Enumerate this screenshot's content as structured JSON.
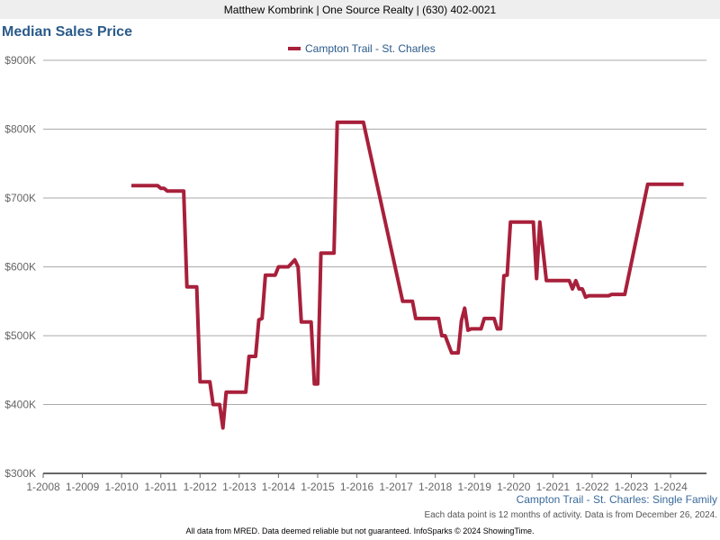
{
  "header": "Matthew Kombrink | One Source Realty | (630) 402-0021",
  "chart_data": {
    "type": "line",
    "title": "Median Sales Price",
    "x_label": "Campton Trail - St. Charles: Single Family",
    "note": "Each data point is 12 months of activity. Data is from December 26, 2024.",
    "footer": "All data from MRED. Data deemed reliable but not guaranteed. InfoSparks © 2024 ShowingTime.",
    "x": [
      "4-2010",
      "12-2010",
      "1-2011",
      "2-2011",
      "3-2011",
      "8-2011",
      "9-2011",
      "12-2011",
      "1-2012",
      "4-2012",
      "5-2012",
      "7-2012",
      "8-2012",
      "9-2012",
      "3-2013",
      "4-2013",
      "6-2013",
      "7-2013",
      "8-2013",
      "9-2013",
      "12-2013",
      "1-2014",
      "4-2014",
      "6-2014",
      "7-2014",
      "8-2014",
      "11-2014",
      "12-2014",
      "1-2015",
      "2-2015",
      "6-2015",
      "7-2015",
      "3-2016",
      "3-2017",
      "6-2017",
      "7-2017",
      "2-2018",
      "3-2018",
      "4-2018",
      "6-2018",
      "8-2018",
      "9-2018",
      "10-2018",
      "11-2018",
      "12-2018",
      "3-2019",
      "4-2019",
      "7-2019",
      "8-2019",
      "9-2019",
      "10-2019",
      "11-2019",
      "12-2019",
      "7-2020",
      "8-2020",
      "9-2020",
      "11-2020",
      "6-2021",
      "7-2021",
      "8-2021",
      "9-2021",
      "10-2021",
      "11-2021",
      "12-2021",
      "6-2022",
      "7-2022",
      "11-2022",
      "6-2023",
      "5-2024"
    ],
    "series": [
      {
        "name": "Campton Trail - St. Charles",
        "color": "#a8203b",
        "values": [
          718000,
          718000,
          714000,
          714000,
          710000,
          710000,
          571000,
          571000,
          433000,
          433000,
          400000,
          400000,
          366000,
          418000,
          418000,
          470000,
          470000,
          523000,
          525000,
          588000,
          588000,
          600000,
          600000,
          610000,
          600000,
          520000,
          520000,
          430000,
          430000,
          620000,
          620000,
          810000,
          810000,
          550000,
          550000,
          525000,
          525000,
          500000,
          500000,
          475000,
          475000,
          522000,
          540000,
          508000,
          510000,
          510000,
          525000,
          525000,
          510000,
          510000,
          587000,
          588000,
          665000,
          665000,
          583000,
          665000,
          580000,
          580000,
          568000,
          580000,
          568000,
          568000,
          556000,
          558000,
          558000,
          560000,
          560000,
          720000,
          720000
        ]
      }
    ],
    "xlim": [
      "1-2008",
      "12-2024"
    ],
    "xticks": [
      "1-2008",
      "1-2009",
      "1-2010",
      "1-2011",
      "1-2012",
      "1-2013",
      "1-2014",
      "1-2015",
      "1-2016",
      "1-2017",
      "1-2018",
      "1-2019",
      "1-2020",
      "1-2021",
      "1-2022",
      "1-2023",
      "1-2024"
    ],
    "ylim": [
      300000,
      900000
    ],
    "yticks": [
      {
        "value": 300000,
        "label": "$300K"
      },
      {
        "value": 400000,
        "label": "$400K"
      },
      {
        "value": 500000,
        "label": "$500K"
      },
      {
        "value": 600000,
        "label": "$600K"
      },
      {
        "value": 700000,
        "label": "$700K"
      },
      {
        "value": 800000,
        "label": "$800K"
      },
      {
        "value": 900000,
        "label": "$900K"
      }
    ],
    "grid": true
  }
}
